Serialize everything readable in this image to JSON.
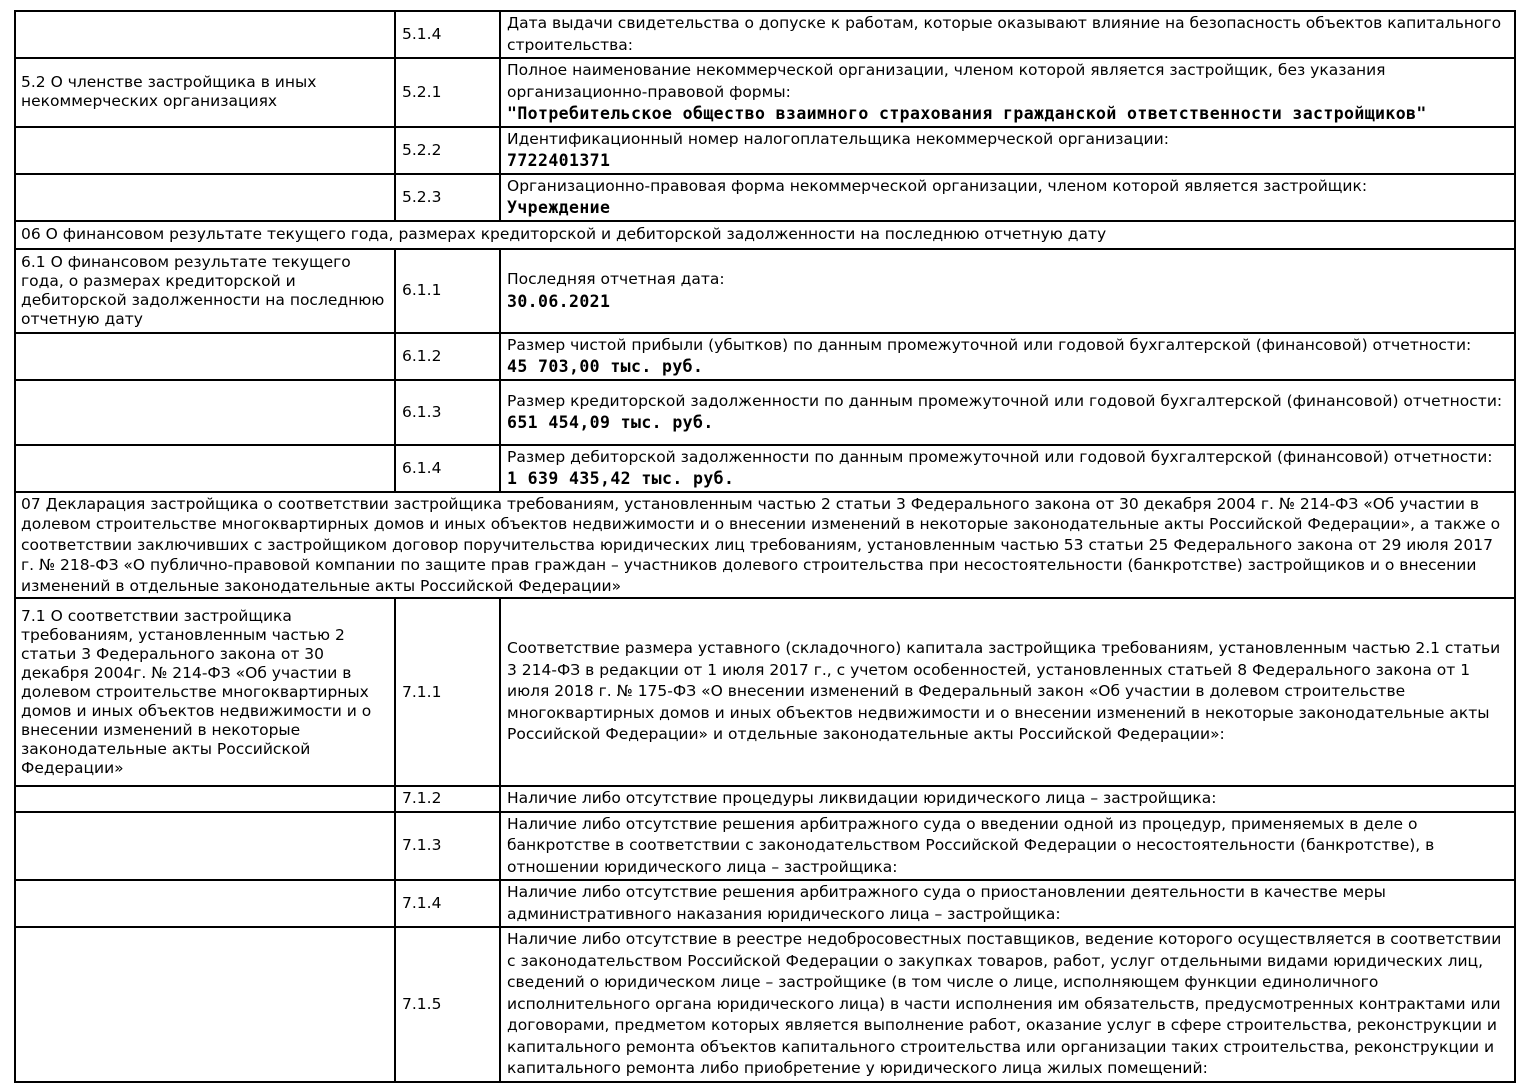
{
  "colors": {
    "text": "#000000",
    "background": "#ffffff",
    "border": "#000000"
  },
  "document": {
    "rows": [
      {
        "type": "item",
        "left": "",
        "num": "5.1.4",
        "label": "Дата выдачи свидетельства о допуске к работам, которые оказывают влияние на безопасность объектов капитального строительства:",
        "value": ""
      },
      {
        "type": "item",
        "left": "5.2 О членстве застройщика в иных некоммерческих организациях",
        "num": "5.2.1",
        "label": "Полное наименование некоммерческой организации, членом которой является застройщик, без указания организационно-правовой формы:",
        "value": "\"Потребительское общество взаимного страхования гражданской ответственности застройщиков\""
      },
      {
        "type": "item",
        "left": "",
        "num": "5.2.2",
        "label": "Идентификационный номер налогоплательщика некоммерческой организации:",
        "value": "7722401371"
      },
      {
        "type": "item",
        "left": "",
        "num": "5.2.3",
        "label": "Организационно-правовая форма некоммерческой организации, членом которой является застройщик:",
        "value": "Учреждение"
      },
      {
        "type": "section",
        "text": "06 О финансовом результате текущего года, размерах кредиторской и дебиторской задолженности на последнюю отчетную дату"
      },
      {
        "type": "item",
        "left": "6.1 О финансовом результате текущего года, о размерах кредиторской и дебиторской задолженности на последнюю отчетную дату",
        "num": "6.1.1",
        "label": "Последняя отчетная дата:",
        "value": "30.06.2021"
      },
      {
        "type": "item",
        "left": "",
        "num": "6.1.2",
        "label": "Размер чистой прибыли (убытков) по данным промежуточной или годовой бухгалтерской (финансовой) отчетности:",
        "value": "45 703,00 тыс. руб."
      },
      {
        "type": "item",
        "left": "",
        "num": "6.1.3",
        "label": "Размер кредиторской задолженности по данным промежуточной или годовой бухгалтерской (финансовой) отчетности:",
        "value": "651 454,09 тыс. руб."
      },
      {
        "type": "item",
        "left": "",
        "num": "6.1.4",
        "label": "Размер дебиторской задолженности по данным промежуточной или годовой бухгалтерской (финансовой) отчетности:",
        "value": "1 639 435,42 тыс. руб."
      },
      {
        "type": "section",
        "text": "07 Декларация застройщика о соответствии застройщика требованиям, установленным частью 2 статьи 3 Федерального закона от 30 декабря 2004 г. № 214-ФЗ «Об участии в долевом строительстве многоквартирных домов и иных объектов недвижимости и о внесении изменений в некоторые законодательные акты Российской Федерации», а также о соответствии заключивших с застройщиком договор поручительства юридических лиц требованиям, установленным частью 53 статьи 25 Федерального закона от 29 июля 2017 г. № 218-ФЗ «О публично-правовой компании по защите прав граждан – участников долевого строительства при несостоятельности (банкротстве) застройщиков и о внесении изменений в отдельные законодательные акты Российской Федерации»"
      },
      {
        "type": "item",
        "left": "7.1 О соответствии застройщика требованиям, установленным частью 2 статьи 3 Федерального закона от 30 декабря 2004г. № 214-ФЗ «Об участии в долевом строительстве многоквартирных домов и иных объектов недвижимости и о внесении изменений в некоторые законодательные акты Российской Федерации»",
        "num": "7.1.1",
        "label": "Соответствие размера уставного (складочного) капитала застройщика требованиям, установленным частью 2.1 статьи 3 214-ФЗ в редакции от 1 июля 2017 г., с учетом особенностей, установленных статьей 8 Федерального закона от 1 июля 2018 г. № 175-ФЗ «О внесении изменений в Федеральный закон «Об участии в долевом строительстве многоквартирных домов и иных объектов недвижимости и о внесении изменений в некоторые законодательные акты Российской Федерации» и отдельные законодательные акты Российской Федерации»:",
        "value": ""
      },
      {
        "type": "item",
        "left": "",
        "num": "7.1.2",
        "label": "Наличие либо отсутствие процедуры ликвидации юридического лица – застройщика:",
        "value": ""
      },
      {
        "type": "item",
        "left": "",
        "num": "7.1.3",
        "label": "Наличие либо отсутствие решения арбитражного суда о введении одной из процедур, применяемых в деле о банкротстве в соответствии с законодательством Российской Федерации о несостоятельности (банкротстве), в отношении юридического лица – застройщика:",
        "value": ""
      },
      {
        "type": "item",
        "left": "",
        "num": "7.1.4",
        "label": "Наличие либо отсутствие решения арбитражного суда о приостановлении деятельности в качестве меры административного наказания юридического лица – застройщика:",
        "value": ""
      },
      {
        "type": "item",
        "left": "",
        "num": "7.1.5",
        "label": "Наличие либо отсутствие в реестре недобросовестных поставщиков, ведение которого осуществляется в соответствии с законодательством Российской Федерации о закупках товаров, работ, услуг отдельными видами юридических лиц, сведений о юридическом лице – застройщике (в том числе о лице, исполняющем функции единоличного исполнительного органа юридического лица) в части исполнения им обязательств, предусмотренных контрактами или договорами, предметом которых является выполнение работ, оказание услуг в сфере строительства, реконструкции и капитального ремонта объектов капитального строительства или организации таких строительства, реконструкции и капитального ремонта либо приобретение у юридического лица жилых помещений:",
        "value": ""
      }
    ]
  }
}
